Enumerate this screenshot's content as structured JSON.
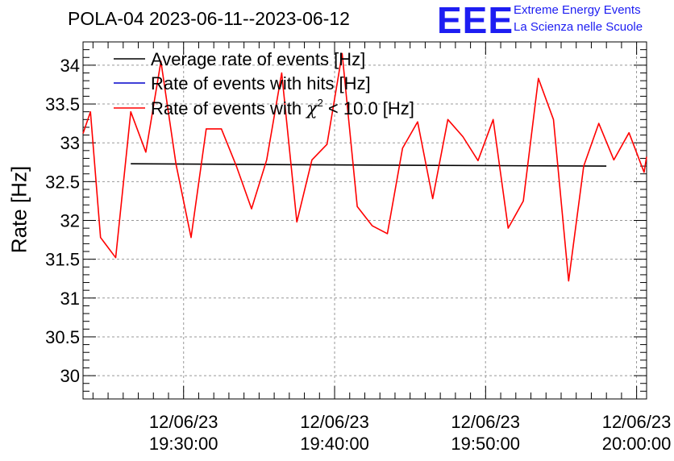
{
  "title": "POLA-04 2023-06-11--2023-06-12",
  "logo": {
    "text": "EEE",
    "line1": "Extreme Energy Events",
    "line2": "La Scienza nelle Scuole",
    "color": "#1d1df2"
  },
  "chart_data": {
    "type": "line",
    "ylabel": "Rate [Hz]",
    "ylim": [
      29.7,
      34.3
    ],
    "yticks": [
      30,
      30.5,
      31,
      31.5,
      32,
      32.5,
      33,
      33.5,
      34
    ],
    "ytick_labels": [
      "30",
      "30.5",
      "31",
      "31.5",
      "32",
      "32.5",
      "33",
      "33.5",
      "34"
    ],
    "xlim": [
      19.389,
      20.0111
    ],
    "xticks": [
      {
        "x": 19.5,
        "date": "12/06/23",
        "time": "19:30:00"
      },
      {
        "x": 19.6667,
        "date": "12/06/23",
        "time": "19:40:00"
      },
      {
        "x": 19.8333,
        "date": "12/06/23",
        "time": "19:50:00"
      },
      {
        "x": 20.0,
        "date": "12/06/23",
        "time": "20:00:00"
      }
    ],
    "grid": true,
    "legend_position": "top-left",
    "series": [
      {
        "name": "Average rate of events [Hz]",
        "color": "#000000",
        "x": [
          19.4417,
          19.6,
          19.75,
          19.9667
        ],
        "y": [
          32.73,
          32.72,
          32.71,
          32.7
        ]
      },
      {
        "name": "Rate of events with hits [Hz]",
        "color": "#0000cc",
        "x": [],
        "y": []
      },
      {
        "name": "Rate of events with χ² < 10.0 [Hz]",
        "name_parts": [
          "Rate of events with ",
          "χ",
          "2",
          " < 10.0 [Hz]"
        ],
        "color": "#ff0000",
        "x": [
          19.389,
          19.3972,
          19.4083,
          19.425,
          19.4417,
          19.4583,
          19.475,
          19.4917,
          19.5083,
          19.525,
          19.5417,
          19.5583,
          19.575,
          19.5917,
          19.6083,
          19.625,
          19.6417,
          19.6583,
          19.675,
          19.6917,
          19.7083,
          19.725,
          19.7417,
          19.7583,
          19.775,
          19.7917,
          19.8083,
          19.825,
          19.8417,
          19.8583,
          19.875,
          19.8917,
          19.9083,
          19.925,
          19.9417,
          19.9583,
          19.975,
          19.9917,
          20.0083,
          20.0111
        ],
        "y": [
          33.12,
          33.4,
          31.78,
          31.52,
          33.4,
          32.88,
          34.05,
          32.72,
          31.78,
          33.18,
          33.18,
          32.7,
          32.15,
          32.78,
          33.9,
          31.98,
          32.78,
          32.98,
          34.15,
          32.18,
          31.93,
          31.83,
          32.93,
          33.27,
          32.28,
          33.3,
          33.08,
          32.77,
          33.3,
          31.9,
          32.25,
          33.83,
          33.3,
          31.22,
          32.7,
          33.25,
          32.78,
          33.13,
          32.62,
          32.82
        ]
      }
    ]
  }
}
